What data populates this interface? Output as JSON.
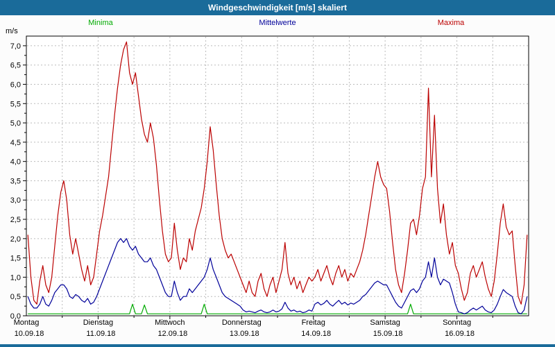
{
  "window": {
    "title": "Windgeschwindigkeit [m/s] skaliert"
  },
  "legend": [
    {
      "label": "Minima",
      "color": "#00aa00"
    },
    {
      "label": "Mittelwerte",
      "color": "#000099"
    },
    {
      "label": "Maxima",
      "color": "#bb0000"
    }
  ],
  "colors": {
    "title_bar": "#1a6b9a",
    "grid": "#bbbbbb",
    "plot_border": "#000000",
    "plot_background": "#ffffff"
  },
  "chart_data": {
    "type": "line",
    "title": "Windgeschwindigkeit [m/s] skaliert",
    "ylabel": "m/s",
    "xlabel": "",
    "ylim": [
      0,
      7.25
    ],
    "y_tick_values": [
      0,
      0.5,
      1.0,
      1.5,
      2.0,
      2.5,
      3.0,
      3.5,
      4.0,
      4.5,
      5.0,
      5.5,
      6.0,
      6.5,
      7.0
    ],
    "y_tick_labels": [
      "0,0",
      "0,5",
      "1,0",
      "1,5",
      "2,0",
      "2,5",
      "3,0",
      "3,5",
      "4,0",
      "4,5",
      "5,0",
      "5,5",
      "6,0",
      "6,5",
      "7,0"
    ],
    "x_days": [
      {
        "name": "Montag",
        "date": "10.09.18"
      },
      {
        "name": "Dienstag",
        "date": "11.09.18"
      },
      {
        "name": "Mittwoch",
        "date": "12.09.18"
      },
      {
        "name": "Donnerstag",
        "date": "13.09.18"
      },
      {
        "name": "Freitag",
        "date": "14.09.18"
      },
      {
        "name": "Samstag",
        "date": "15.09.18"
      },
      {
        "name": "Sonntag",
        "date": "16.09.18"
      }
    ],
    "samples_per_day": 24,
    "grid": "dashed; horizontal every 0.5 m/s, vertical every 12 h",
    "legend_position": "top",
    "series": [
      {
        "name": "Minima",
        "color": "#00aa00",
        "values": [
          0.05,
          0.05,
          0.05,
          0.05,
          0.05,
          0.05,
          0.05,
          0.05,
          0.05,
          0.05,
          0.05,
          0.05,
          0.05,
          0.05,
          0.05,
          0.05,
          0.05,
          0.05,
          0.05,
          0.05,
          0.05,
          0.05,
          0.05,
          0.05,
          0.05,
          0.05,
          0.05,
          0.05,
          0.05,
          0.05,
          0.05,
          0.05,
          0.05,
          0.05,
          0.05,
          0.3,
          0.05,
          0.05,
          0.05,
          0.28,
          0.05,
          0.05,
          0.05,
          0.05,
          0.05,
          0.05,
          0.05,
          0.05,
          0.05,
          0.05,
          0.05,
          0.05,
          0.05,
          0.05,
          0.05,
          0.05,
          0.05,
          0.05,
          0.05,
          0.3,
          0.05,
          0.05,
          0.05,
          0.05,
          0.05,
          0.05,
          0.05,
          0.05,
          0.05,
          0.05,
          0.05,
          0.05,
          0.05,
          0.05,
          0.05,
          0.05,
          0.05,
          0.05,
          0.05,
          0.05,
          0.05,
          0.05,
          0.05,
          0.05,
          0.05,
          0.05,
          0.05,
          0.05,
          0.05,
          0.05,
          0.05,
          0.05,
          0.05,
          0.05,
          0.05,
          0.05,
          0.05,
          0.05,
          0.05,
          0.05,
          0.05,
          0.05,
          0.05,
          0.05,
          0.05,
          0.05,
          0.05,
          0.05,
          0.05,
          0.05,
          0.05,
          0.05,
          0.05,
          0.05,
          0.05,
          0.05,
          0.05,
          0.05,
          0.05,
          0.05,
          0.05,
          0.05,
          0.05,
          0.05,
          0.05,
          0.05,
          0.05,
          0.05,
          0.3,
          0.05,
          0.05,
          0.05,
          0.05,
          0.05,
          0.05,
          0.05,
          0.05,
          0.05,
          0.05,
          0.05,
          0.05,
          0.05,
          0.05,
          0.05,
          0.05,
          0.05,
          0.05,
          0.05,
          0.05,
          0.05,
          0.05,
          0.05,
          0.05,
          0.05,
          0.05,
          0.05,
          0.05,
          0.05,
          0.05,
          0.05,
          0.05,
          0.05,
          0.05,
          0.05,
          0.05,
          0.05,
          0.05,
          0.05
        ]
      },
      {
        "name": "Mittelwerte",
        "color": "#000099",
        "values": [
          0.5,
          0.3,
          0.2,
          0.2,
          0.3,
          0.5,
          0.3,
          0.25,
          0.4,
          0.6,
          0.7,
          0.8,
          0.8,
          0.7,
          0.5,
          0.45,
          0.55,
          0.5,
          0.4,
          0.35,
          0.45,
          0.3,
          0.35,
          0.5,
          0.7,
          0.9,
          1.1,
          1.3,
          1.5,
          1.7,
          1.9,
          2.0,
          1.9,
          2.0,
          1.8,
          1.7,
          1.8,
          1.6,
          1.5,
          1.4,
          1.4,
          1.5,
          1.3,
          1.2,
          1.0,
          0.8,
          0.6,
          0.5,
          0.5,
          0.9,
          0.6,
          0.4,
          0.5,
          0.5,
          0.7,
          0.6,
          0.7,
          0.8,
          0.9,
          1.0,
          1.2,
          1.5,
          1.2,
          1.0,
          0.8,
          0.6,
          0.5,
          0.45,
          0.4,
          0.35,
          0.3,
          0.25,
          0.15,
          0.1,
          0.12,
          0.1,
          0.08,
          0.12,
          0.15,
          0.1,
          0.08,
          0.1,
          0.15,
          0.1,
          0.12,
          0.18,
          0.35,
          0.2,
          0.12,
          0.15,
          0.1,
          0.12,
          0.08,
          0.1,
          0.15,
          0.12,
          0.3,
          0.35,
          0.28,
          0.32,
          0.4,
          0.3,
          0.25,
          0.33,
          0.4,
          0.3,
          0.35,
          0.28,
          0.33,
          0.3,
          0.35,
          0.4,
          0.5,
          0.55,
          0.65,
          0.75,
          0.85,
          0.9,
          0.85,
          0.8,
          0.8,
          0.65,
          0.5,
          0.35,
          0.25,
          0.2,
          0.35,
          0.5,
          0.65,
          0.7,
          0.6,
          0.7,
          0.9,
          1.0,
          1.4,
          1.0,
          1.5,
          1.0,
          0.8,
          0.95,
          0.9,
          0.85,
          0.6,
          0.3,
          0.1,
          0.08,
          0.05,
          0.08,
          0.15,
          0.2,
          0.15,
          0.2,
          0.25,
          0.15,
          0.1,
          0.08,
          0.15,
          0.3,
          0.5,
          0.68,
          0.6,
          0.55,
          0.5,
          0.25,
          0.08,
          0.05,
          0.15,
          0.5
        ]
      },
      {
        "name": "Maxima",
        "color": "#bb0000",
        "values": [
          2.1,
          1.0,
          0.4,
          0.3,
          0.9,
          1.3,
          0.8,
          0.6,
          1.0,
          1.8,
          2.6,
          3.2,
          3.5,
          3.0,
          2.1,
          1.6,
          2.0,
          1.6,
          1.2,
          0.9,
          1.3,
          0.8,
          1.0,
          1.6,
          2.2,
          2.6,
          3.1,
          3.6,
          4.4,
          5.2,
          5.9,
          6.5,
          6.9,
          7.1,
          6.3,
          6.0,
          6.3,
          5.7,
          5.1,
          4.7,
          4.5,
          5.0,
          4.6,
          3.9,
          3.0,
          2.2,
          1.6,
          1.4,
          1.5,
          2.4,
          1.7,
          1.2,
          1.5,
          1.4,
          2.0,
          1.7,
          2.2,
          2.5,
          2.8,
          3.3,
          4.0,
          4.9,
          4.3,
          3.4,
          2.6,
          2.0,
          1.7,
          1.5,
          1.6,
          1.4,
          1.2,
          1.0,
          0.8,
          0.6,
          0.9,
          0.6,
          0.5,
          0.9,
          1.1,
          0.7,
          0.5,
          0.8,
          1.0,
          0.6,
          0.9,
          1.2,
          1.9,
          1.1,
          0.8,
          1.0,
          0.7,
          0.9,
          0.6,
          0.8,
          1.0,
          0.9,
          1.0,
          1.2,
          0.9,
          1.1,
          1.3,
          1.0,
          0.8,
          1.1,
          1.3,
          1.0,
          1.2,
          0.9,
          1.1,
          1.0,
          1.2,
          1.4,
          1.7,
          2.1,
          2.6,
          3.1,
          3.6,
          4.0,
          3.6,
          3.4,
          3.3,
          2.7,
          1.9,
          1.2,
          0.8,
          0.6,
          1.1,
          1.7,
          2.4,
          2.5,
          2.1,
          2.6,
          3.3,
          3.6,
          5.9,
          3.6,
          5.2,
          3.3,
          2.4,
          2.9,
          2.1,
          1.6,
          1.9,
          1.3,
          1.1,
          0.7,
          0.4,
          0.6,
          1.1,
          1.3,
          1.0,
          1.2,
          1.4,
          1.0,
          0.7,
          0.5,
          0.9,
          1.6,
          2.4,
          2.9,
          2.3,
          2.1,
          2.2,
          1.3,
          0.5,
          0.3,
          0.8,
          2.1
        ]
      }
    ]
  }
}
